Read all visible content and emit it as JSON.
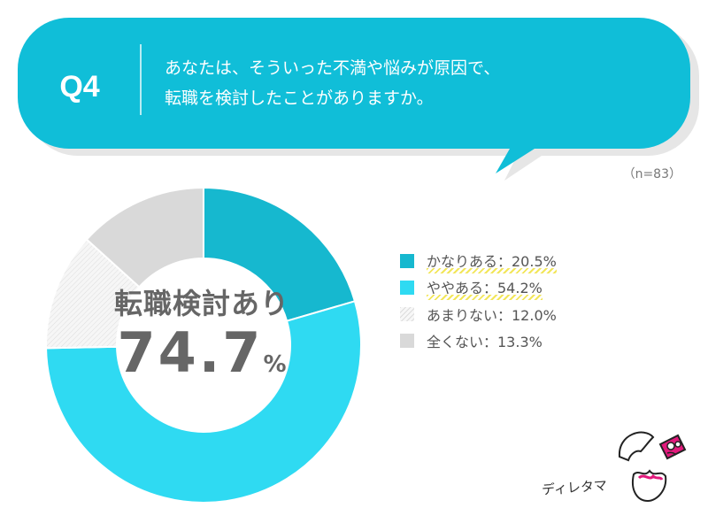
{
  "question": {
    "label": "Q4",
    "text_line1": "あなたは、そういった不満や悩みが原因で、",
    "text_line2": "転職を検討したことがありますか。"
  },
  "sample_size": "（n=83）",
  "center": {
    "label": "転職検討あり",
    "value": "74.7",
    "unit": "%"
  },
  "colors": {
    "bubble": "#10bed8",
    "bubble_shadow": "#e6e6e6",
    "kanari": "#16b8cf",
    "yaya": "#2fdaf2",
    "amari": "#f4f4f4",
    "mattaku": "#d9d9d9"
  },
  "chart_data": {
    "type": "pie",
    "categories": [
      "かなりある",
      "ややある",
      "あまりない",
      "全くない"
    ],
    "values": [
      20.5,
      54.2,
      12.0,
      13.3
    ],
    "legend_labels": [
      "かなりある：20.5%",
      "ややある：54.2%",
      "あまりない：12.0%",
      "全くない：13.3%"
    ],
    "legend_position": "right",
    "donut": true
  },
  "logo": {
    "text": "ディレタマ",
    "icon": "egg-mascot-icon"
  }
}
